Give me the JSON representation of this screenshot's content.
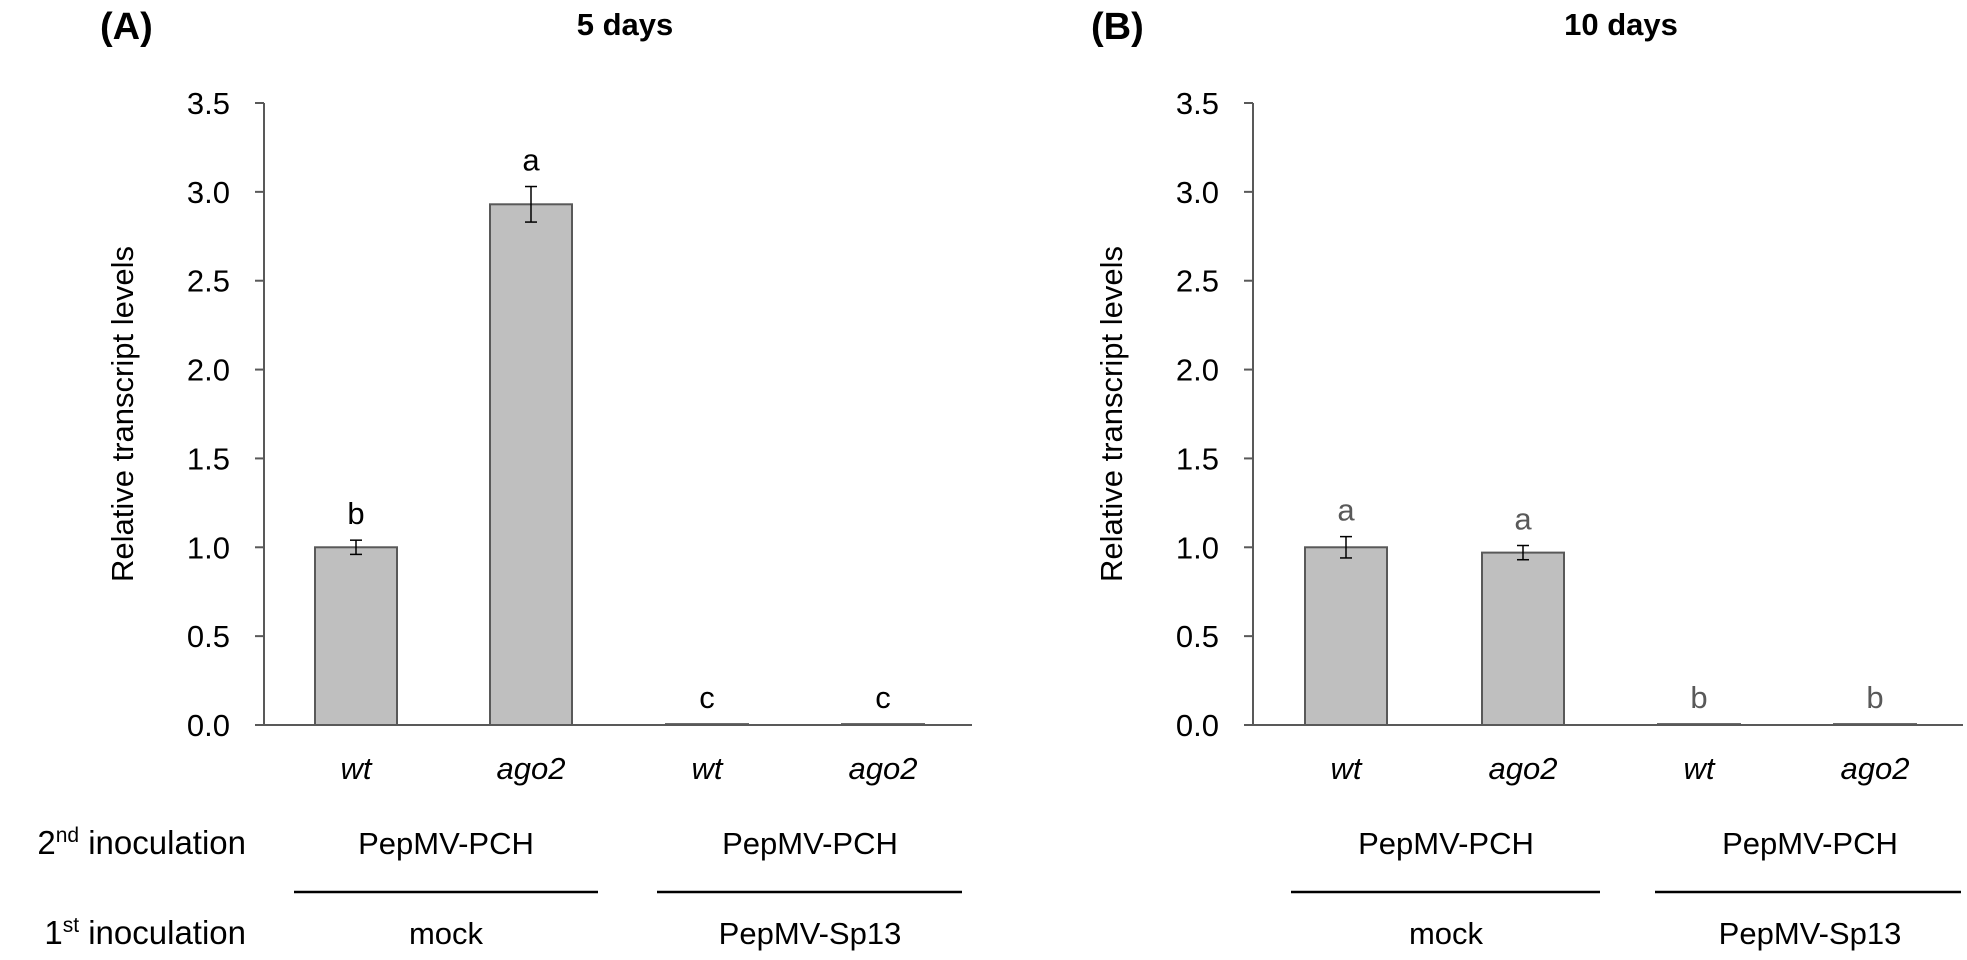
{
  "row_labels": {
    "second": {
      "base": "2",
      "sup": "nd",
      "text": " inoculation"
    },
    "first": {
      "base": "1",
      "sup": "st",
      "text": " inoculation"
    }
  },
  "chart_data": [
    {
      "type": "bar",
      "panel": "(A)",
      "title": "5 days",
      "ylabel": "Relative transcript levels",
      "xlabel": "",
      "ylim": [
        0,
        3.5
      ],
      "ticks": [
        "0.0",
        "0.5",
        "1.0",
        "1.5",
        "2.0",
        "2.5",
        "3.0",
        "3.5"
      ],
      "categories": [
        "wt",
        "ago2",
        "wt",
        "ago2"
      ],
      "values": [
        1.0,
        2.93,
        0.005,
        0.005
      ],
      "errors": [
        0.04,
        0.1,
        0,
        0
      ],
      "letters": [
        "b",
        "a",
        "c",
        "c"
      ],
      "letter_color": "#000000",
      "bar_color": "#bfbfbf",
      "groups": [
        {
          "second": "PepMV-PCH",
          "first": "mock"
        },
        {
          "second": "PepMV-PCH",
          "first": "PepMV-Sp13"
        }
      ]
    },
    {
      "type": "bar",
      "panel": "(B)",
      "title": "10 days",
      "ylabel": "Relative transcript levels",
      "xlabel": "",
      "ylim": [
        0,
        3.5
      ],
      "ticks": [
        "0.0",
        "0.5",
        "1.0",
        "1.5",
        "2.0",
        "2.5",
        "3.0",
        "3.5"
      ],
      "categories": [
        "wt",
        "ago2",
        "wt",
        "ago2"
      ],
      "values": [
        1.0,
        0.97,
        0.005,
        0.005
      ],
      "errors": [
        0.06,
        0.04,
        0,
        0
      ],
      "letters": [
        "a",
        "a",
        "b",
        "b"
      ],
      "letter_color": "#595959",
      "bar_color": "#bfbfbf",
      "groups": [
        {
          "second": "PepMV-PCH",
          "first": "mock"
        },
        {
          "second": "PepMV-PCH",
          "first": "PepMV-Sp13"
        }
      ]
    }
  ]
}
